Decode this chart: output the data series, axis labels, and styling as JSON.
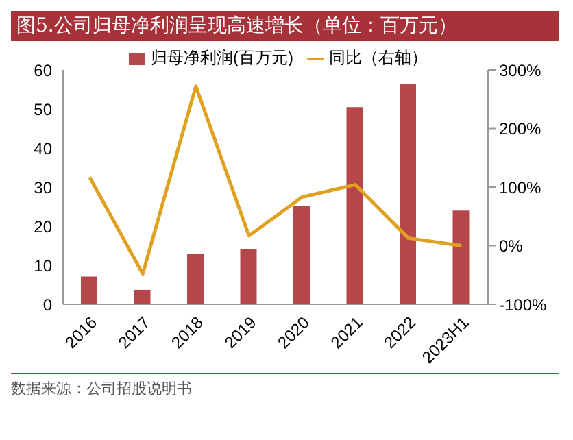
{
  "chart_data": {
    "type": "bar",
    "title": "图5.公司归母净利润呈现高速增长（单位：百万元）",
    "categories": [
      "2016",
      "2017",
      "2018",
      "2019",
      "2020",
      "2021",
      "2022",
      "2023H1"
    ],
    "series": [
      {
        "name": "归母净利润(百万元)",
        "color": "#b5474a",
        "values": [
          7.1,
          3.7,
          12.9,
          14.1,
          25.1,
          50.5,
          56.3,
          24.0
        ]
      },
      {
        "name": "同比（右轴）",
        "type": "line",
        "axis": "y2",
        "color": "#e0a020",
        "values": [
          117,
          -48,
          272,
          17,
          83,
          104,
          13,
          0
        ]
      }
    ],
    "ylim": [
      0,
      60
    ],
    "yticks": [
      0,
      10,
      20,
      30,
      40,
      50,
      60
    ],
    "y2lim": [
      -100,
      300
    ],
    "y2ticks": [
      {
        "value": -100,
        "label": "-100%"
      },
      {
        "value": 0,
        "label": "0%"
      },
      {
        "value": 100,
        "label": "100%"
      },
      {
        "value": 200,
        "label": "200%"
      },
      {
        "value": 300,
        "label": "300%"
      }
    ],
    "legend": "top",
    "marker": "none",
    "line_style": "solid",
    "annotations": [
      "数据来源：公司招股说明书"
    ]
  }
}
